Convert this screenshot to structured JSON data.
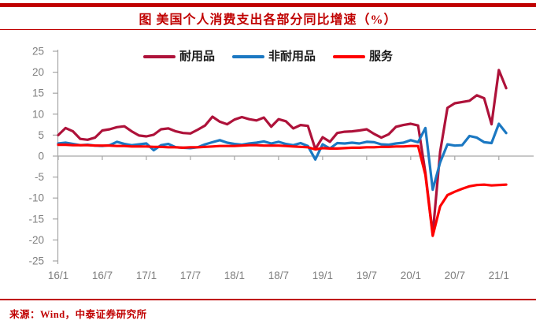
{
  "page": {
    "background": "#FFFFFF",
    "accent_color": "#C00000"
  },
  "header": {
    "title": "图  美国个人消费支出各部分同比增速（%）"
  },
  "legend": {
    "items": [
      {
        "key": "durables",
        "label": "耐用品",
        "color": "#AE123A"
      },
      {
        "key": "nondurables",
        "label": "非耐用品",
        "color": "#1B78C2"
      },
      {
        "key": "services",
        "label": "服务",
        "color": "#FE0000"
      }
    ]
  },
  "footer": {
    "source": "来源：Wind，中泰证券研究所"
  },
  "chart_data": {
    "type": "line",
    "title": "图  美国个人消费支出各部分同比增速（%）",
    "x_unit": "month",
    "x_start": "2016-01",
    "x_end": "2021-02",
    "x_tick_labels": [
      "16/1",
      "16/7",
      "17/1",
      "17/7",
      "18/1",
      "18/7",
      "19/1",
      "19/7",
      "20/1",
      "20/7",
      "21/1"
    ],
    "x_tick_month_indices": [
      0,
      6,
      12,
      18,
      24,
      30,
      36,
      42,
      48,
      54,
      60
    ],
    "y_ticks": [
      25,
      20,
      15,
      10,
      5,
      0,
      -5,
      -10,
      -15,
      -20,
      -25
    ],
    "ylim": [
      -25,
      25
    ],
    "grid": false,
    "legend_position": "top-center",
    "axis_color": "#A6A6A6",
    "tick_label_color": "#7F7F7F",
    "series": [
      {
        "key": "durables",
        "name": "耐用品",
        "color": "#AE123A",
        "values": [
          5.0,
          6.7,
          5.9,
          4.1,
          3.9,
          4.4,
          6.1,
          6.4,
          6.9,
          7.1,
          5.9,
          4.9,
          4.7,
          5.1,
          6.4,
          6.6,
          5.9,
          5.5,
          5.4,
          6.3,
          7.3,
          9.4,
          8.2,
          7.6,
          8.7,
          9.3,
          8.8,
          8.5,
          9.2,
          7.0,
          8.8,
          8.3,
          6.6,
          7.4,
          7.2,
          1.7,
          4.5,
          3.4,
          5.5,
          5.8,
          5.9,
          6.1,
          6.4,
          5.3,
          4.4,
          5.2,
          7.0,
          7.4,
          7.7,
          7.3,
          -4.0,
          -18.6,
          1.0,
          11.5,
          12.6,
          12.9,
          13.2,
          14.5,
          13.8,
          7.6,
          20.5,
          16.2
        ]
      },
      {
        "key": "nondurables",
        "name": "非耐用品",
        "color": "#1B78C2",
        "values": [
          3.0,
          3.2,
          2.9,
          2.6,
          2.7,
          2.5,
          2.4,
          2.6,
          3.4,
          2.9,
          2.6,
          2.8,
          3.0,
          1.4,
          2.6,
          2.9,
          2.1,
          2.0,
          1.9,
          2.1,
          2.8,
          3.3,
          3.8,
          3.2,
          2.9,
          2.7,
          3.0,
          3.2,
          3.5,
          3.0,
          3.4,
          2.9,
          2.6,
          3.1,
          2.4,
          -0.8,
          2.8,
          1.8,
          3.1,
          3.0,
          3.2,
          3.0,
          3.4,
          3.3,
          2.8,
          2.7,
          3.0,
          3.2,
          3.8,
          3.3,
          6.7,
          -8.0,
          -1.5,
          2.8,
          2.5,
          2.6,
          4.8,
          4.4,
          3.3,
          3.1,
          7.7,
          5.5
        ]
      },
      {
        "key": "services",
        "name": "服务",
        "color": "#FE0000",
        "values": [
          2.7,
          2.7,
          2.6,
          2.6,
          2.6,
          2.5,
          2.5,
          2.5,
          2.4,
          2.4,
          2.3,
          2.3,
          2.3,
          2.2,
          2.2,
          2.1,
          2.1,
          2.0,
          2.1,
          2.1,
          2.2,
          2.3,
          2.4,
          2.4,
          2.4,
          2.5,
          2.6,
          2.6,
          2.5,
          2.5,
          2.5,
          2.4,
          2.3,
          2.2,
          2.1,
          1.6,
          1.9,
          1.8,
          1.8,
          1.9,
          2.0,
          2.0,
          2.1,
          2.1,
          2.2,
          2.2,
          2.3,
          2.3,
          2.4,
          2.4,
          -4.5,
          -19.0,
          -12.0,
          -9.3,
          -8.5,
          -7.8,
          -7.2,
          -6.9,
          -6.8,
          -7.0,
          -6.9,
          -6.8
        ]
      }
    ]
  }
}
